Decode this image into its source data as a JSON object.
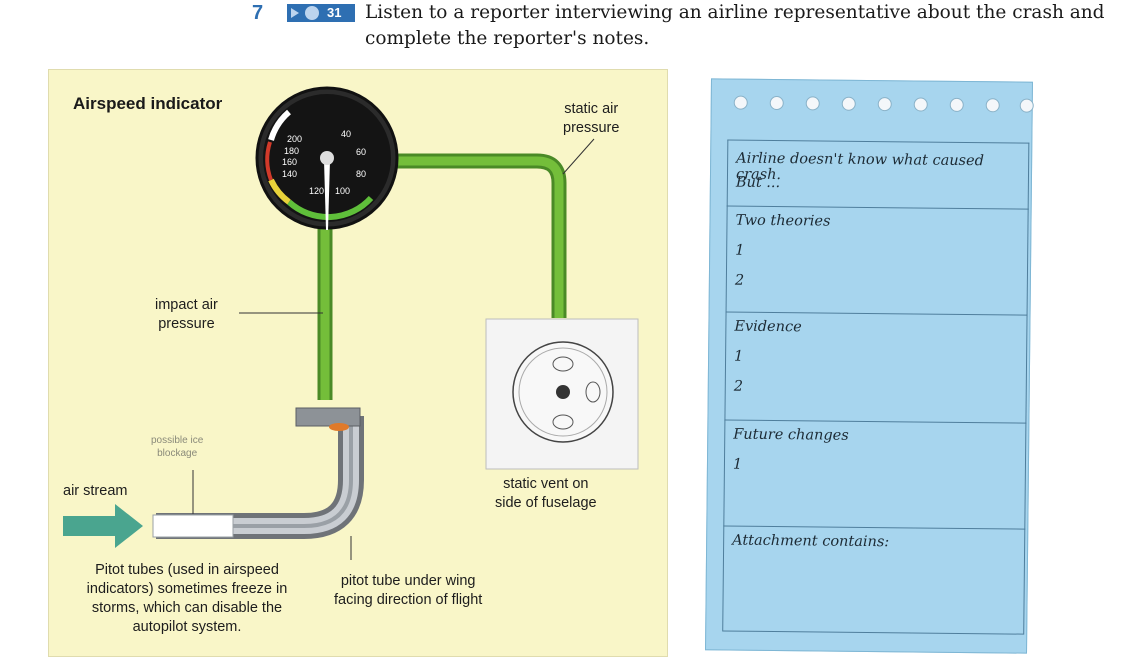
{
  "task": {
    "number": "7",
    "track": "31",
    "text": "Listen to a reporter interviewing an airline representative about the crash and complete the reporter's notes."
  },
  "figure": {
    "title": "Airspeed indicator",
    "gauge_ticks": [
      "200",
      "40",
      "180",
      "60",
      "160",
      "80",
      "140",
      "120",
      "100"
    ],
    "labels": {
      "static_air": [
        "static air",
        "pressure"
      ],
      "impact_air": [
        "impact air",
        "pressure"
      ],
      "possible_ice": [
        "possible ice",
        "blockage"
      ],
      "air_stream": "air stream",
      "static_vent": [
        "static vent on",
        "side of fuselage"
      ],
      "pitot_tube": [
        "pitot tube under wing",
        "facing direction of flight"
      ],
      "caption": [
        "Pitot tubes (used in airspeed",
        "indicators) sometimes freeze in",
        "storms, which can disable the",
        "autopilot system."
      ]
    },
    "colors": {
      "background": "#f9f6c8",
      "tube": "#6bb332",
      "arrow": "#4aa58f"
    }
  },
  "notes": {
    "colors": {
      "paper": "#a7d5ee",
      "lines": "#4f7e9c"
    },
    "sections": [
      {
        "lines": [
          "Airline doesn't know what caused crash.",
          "But ..."
        ]
      },
      {
        "lines": [
          "Two theories",
          "1",
          "2"
        ]
      },
      {
        "lines": [
          "Evidence",
          "1",
          "2"
        ]
      },
      {
        "lines": [
          "Future changes",
          "1"
        ]
      },
      {
        "lines": [
          "Attachment contains:"
        ]
      }
    ]
  }
}
